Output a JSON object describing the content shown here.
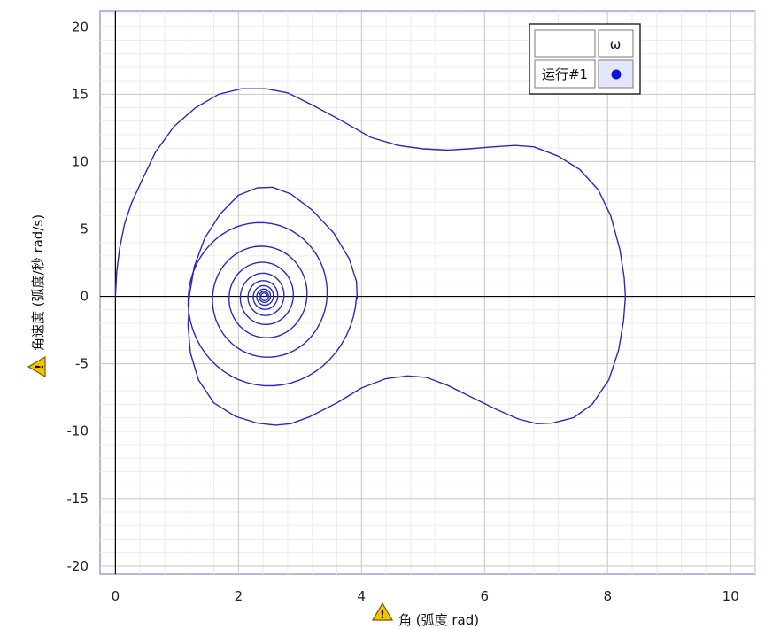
{
  "chart_data": {
    "type": "line",
    "xlabel": "角 (弧度 rad)",
    "ylabel": "角速度 (弧度/秒 rad/s)",
    "xlim": [
      -0.25,
      10.4
    ],
    "ylim": [
      -20.6,
      21.2
    ],
    "x_ticks": [
      0,
      2,
      4,
      6,
      8,
      10
    ],
    "y_ticks": [
      -20,
      -15,
      -10,
      -5,
      0,
      5,
      10,
      15,
      20
    ],
    "x_tick_labels": [
      "0",
      "2",
      "4",
      "6",
      "8",
      "10"
    ],
    "y_tick_labels": [
      "-20",
      "-15",
      "-10",
      "-5",
      "0",
      "5",
      "10",
      "15",
      "20"
    ],
    "grid": true,
    "legend_position": "top-right",
    "legend": {
      "column_header": "ω",
      "row_label": "运行#1"
    },
    "series": [
      {
        "name": "ω",
        "color": "#2a2ab8",
        "outer_loop": [
          [
            0.0,
            0.0
          ],
          [
            0.02,
            1.8
          ],
          [
            0.07,
            3.6
          ],
          [
            0.15,
            5.4
          ],
          [
            0.26,
            6.9
          ],
          [
            0.42,
            8.5
          ],
          [
            0.65,
            10.7
          ],
          [
            0.95,
            12.6
          ],
          [
            1.3,
            14.0
          ],
          [
            1.68,
            15.0
          ],
          [
            2.05,
            15.4
          ],
          [
            2.45,
            15.4
          ],
          [
            2.8,
            15.1
          ],
          [
            3.2,
            14.2
          ],
          [
            3.65,
            13.1
          ],
          [
            4.15,
            11.8
          ],
          [
            4.6,
            11.2
          ],
          [
            5.0,
            10.95
          ],
          [
            5.4,
            10.85
          ],
          [
            5.75,
            10.95
          ],
          [
            6.15,
            11.1
          ],
          [
            6.5,
            11.2
          ],
          [
            6.8,
            11.1
          ],
          [
            7.2,
            10.4
          ],
          [
            7.55,
            9.4
          ],
          [
            7.85,
            7.9
          ],
          [
            8.05,
            6.0
          ],
          [
            8.2,
            3.5
          ],
          [
            8.27,
            1.4
          ],
          [
            8.29,
            0.0
          ],
          [
            8.26,
            -1.8
          ],
          [
            8.18,
            -4.0
          ],
          [
            8.02,
            -6.2
          ],
          [
            7.75,
            -8.0
          ],
          [
            7.45,
            -9.0
          ],
          [
            7.1,
            -9.4
          ],
          [
            6.85,
            -9.45
          ],
          [
            6.55,
            -9.1
          ],
          [
            6.2,
            -8.4
          ],
          [
            5.8,
            -7.5
          ],
          [
            5.4,
            -6.6
          ],
          [
            5.05,
            -6.0
          ],
          [
            4.75,
            -5.9
          ],
          [
            4.4,
            -6.1
          ],
          [
            4.0,
            -6.8
          ],
          [
            3.6,
            -7.9
          ],
          [
            3.15,
            -8.95
          ],
          [
            2.85,
            -9.45
          ],
          [
            2.6,
            -9.55
          ],
          [
            2.3,
            -9.4
          ],
          [
            1.95,
            -8.9
          ],
          [
            1.6,
            -7.9
          ],
          [
            1.35,
            -6.2
          ],
          [
            1.22,
            -4.2
          ],
          [
            1.18,
            -2.2
          ],
          [
            1.2,
            0.0
          ],
          [
            1.28,
            2.2
          ],
          [
            1.45,
            4.3
          ],
          [
            1.7,
            6.1
          ],
          [
            2.0,
            7.5
          ],
          [
            2.3,
            8.05
          ],
          [
            2.55,
            8.1
          ],
          [
            2.85,
            7.6
          ],
          [
            3.2,
            6.4
          ],
          [
            3.55,
            4.7
          ],
          [
            3.8,
            2.8
          ],
          [
            3.92,
            1.1
          ],
          [
            3.93,
            -0.2
          ]
        ],
        "spiral_center": [
          2.42,
          0.0
        ],
        "spiral_x_amplitude_start": 1.5,
        "spiral_y_amplitude_start": 7.3,
        "spiral_turns": 9,
        "spiral_decay_per_turn": 0.68
      }
    ]
  }
}
